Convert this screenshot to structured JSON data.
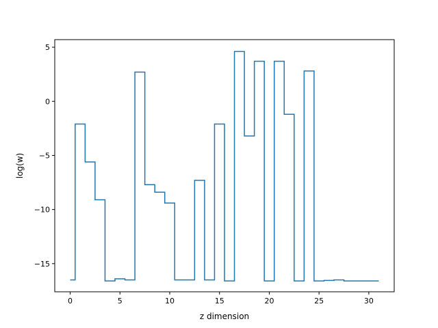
{
  "chart_data": {
    "type": "line",
    "drawstyle": "steps-mid",
    "xlabel": "z dimension",
    "ylabel": "log(w)",
    "xlim": [
      -1.55,
      32.55
    ],
    "ylim": [
      -17.6,
      5.7
    ],
    "xticks": [
      0,
      5,
      10,
      15,
      20,
      25,
      30
    ],
    "yticks": [
      -15,
      -10,
      -5,
      0,
      5
    ],
    "grid": false,
    "line_color": "#1f77b4",
    "x": [
      0,
      1,
      2,
      3,
      4,
      5,
      6,
      7,
      8,
      9,
      10,
      11,
      12,
      13,
      14,
      15,
      16,
      17,
      18,
      19,
      20,
      21,
      22,
      23,
      24,
      25,
      26,
      27,
      28,
      29,
      30,
      31
    ],
    "values": [
      -16.5,
      -2.1,
      -5.6,
      -9.1,
      -16.6,
      -16.4,
      -16.5,
      2.7,
      -7.7,
      -8.4,
      -9.4,
      -16.5,
      -16.5,
      -7.3,
      -16.5,
      -2.1,
      -16.6,
      4.6,
      -3.2,
      3.7,
      -16.6,
      3.7,
      -1.2,
      -16.6,
      2.8,
      -16.6,
      -16.55,
      -16.5,
      -16.6,
      -16.6,
      -16.6,
      -16.6
    ]
  }
}
